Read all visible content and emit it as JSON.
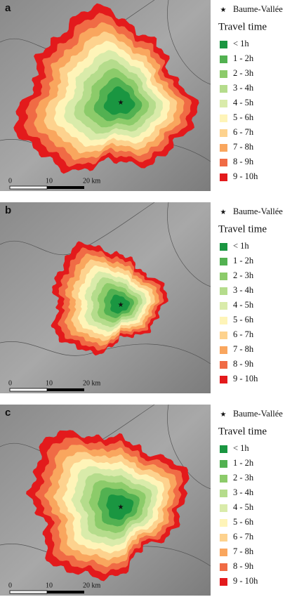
{
  "panels": [
    {
      "label": "a"
    },
    {
      "label": "b"
    },
    {
      "label": "c"
    }
  ],
  "legend": {
    "marker_label": "Baume-Vallée",
    "title": "Travel time",
    "classes": [
      {
        "label": "< 1h",
        "color": "#1a9641"
      },
      {
        "label": "1 - 2h",
        "color": "#52b151"
      },
      {
        "label": "2 - 3h",
        "color": "#8ccb6a"
      },
      {
        "label": "3 - 4h",
        "color": "#b5dc8c"
      },
      {
        "label": "4 - 5h",
        "color": "#d9ebaa"
      },
      {
        "label": "5 - 6h",
        "color": "#fef4b8"
      },
      {
        "label": "6 - 7h",
        "color": "#fdd28e"
      },
      {
        "label": "7 - 8h",
        "color": "#f9a65e"
      },
      {
        "label": "8 - 9h",
        "color": "#f06b45"
      },
      {
        "label": "9 - 10h",
        "color": "#e31a1c"
      }
    ]
  },
  "scale_bar": [
    "0",
    "10",
    "20 km"
  ]
}
